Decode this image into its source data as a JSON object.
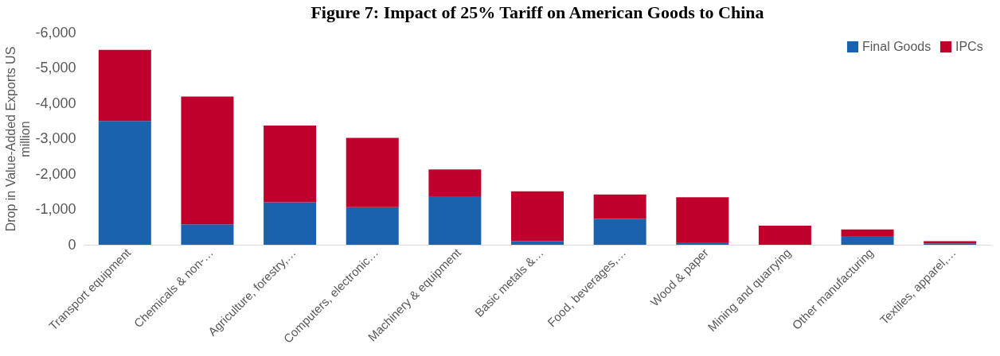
{
  "chart_data": {
    "type": "bar",
    "stacked": true,
    "title": "Figure 7: Impact of 25% Tariff on American Goods to China",
    "ylabel": "Drop in Value-Added Exports  US million",
    "categories": [
      "Transport equipment",
      "Chemicals & non-…",
      "Agriculture, forestry,…",
      "Computers, electronic…",
      "Machinery & equipment",
      "Basic metals &…",
      "Food, beverages,…",
      "Wood & paper",
      "Mining and quarrying",
      "Other manufacturing",
      "Textiles, apparel,…"
    ],
    "series": [
      {
        "name": "Final Goods",
        "color": "#1a62ac",
        "values": [
          -3500,
          -580,
          -1200,
          -1060,
          -1370,
          -100,
          -730,
          -70,
          0,
          -250,
          -40
        ]
      },
      {
        "name": "IPCs",
        "color": "#c0002c",
        "values": [
          -2010,
          -3610,
          -2170,
          -1960,
          -760,
          -1410,
          -690,
          -1270,
          -540,
          -180,
          -60
        ]
      }
    ],
    "ylim": [
      0,
      -6000
    ],
    "yticks": [
      {
        "value": -6000,
        "label": "-6,000"
      },
      {
        "value": -5000,
        "label": "-5,000"
      },
      {
        "value": -4000,
        "label": "-4,000"
      },
      {
        "value": -3000,
        "label": "-3,000"
      },
      {
        "value": -2000,
        "label": "-2,000"
      },
      {
        "value": -1000,
        "label": "-1,000"
      },
      0
    ],
    "grid": false,
    "legend": "top right"
  }
}
